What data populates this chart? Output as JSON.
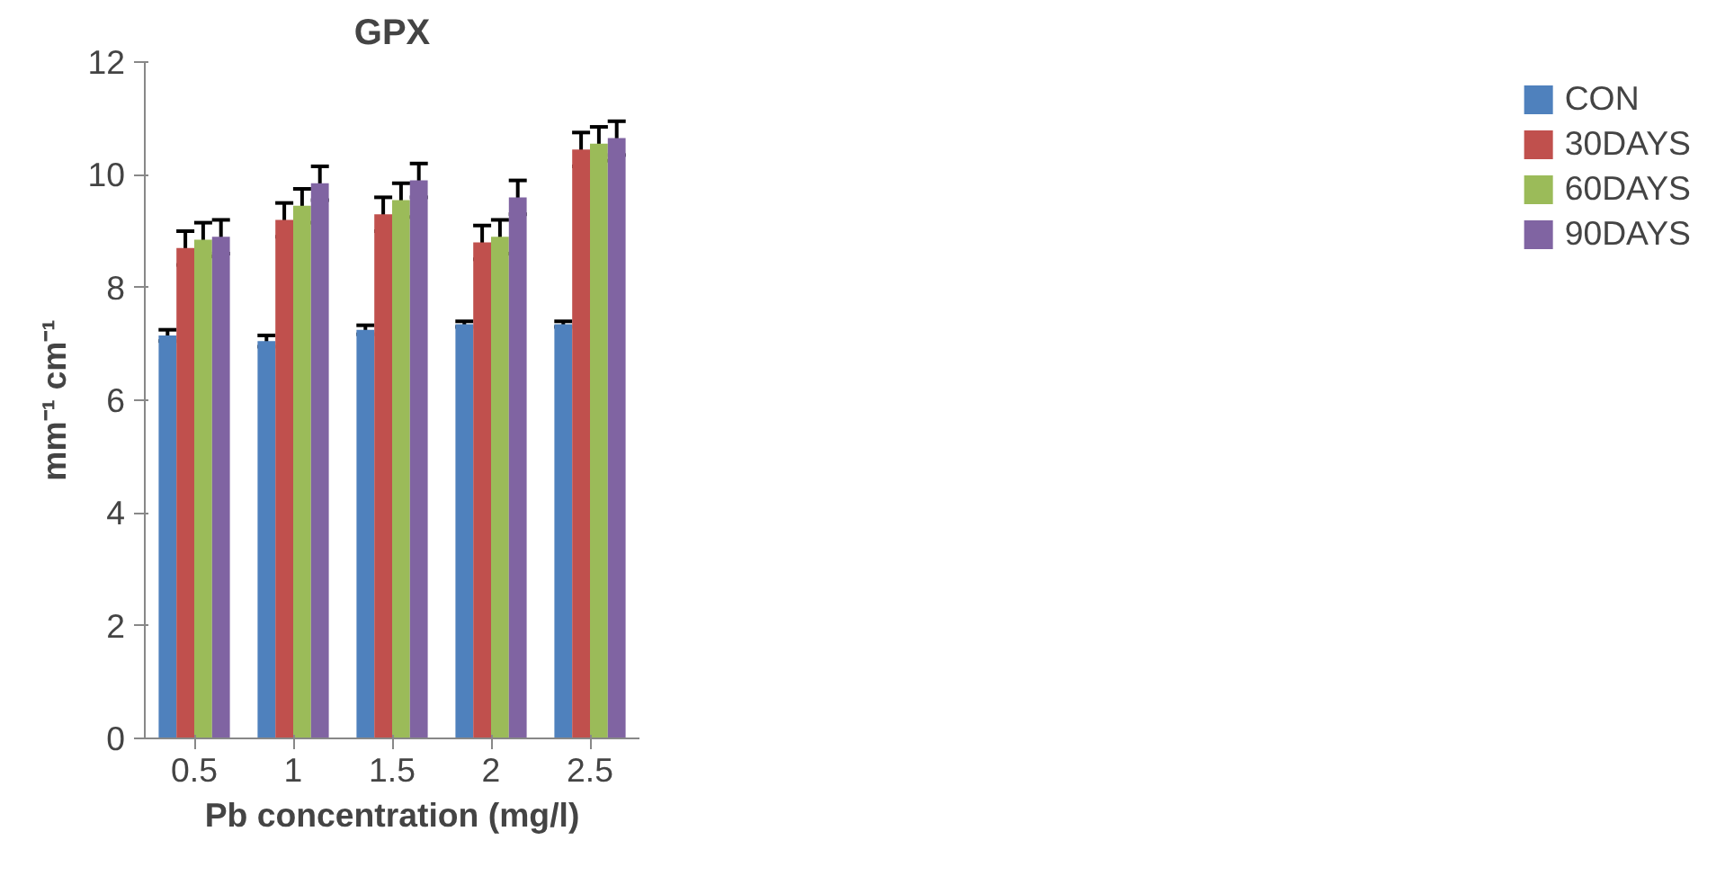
{
  "chart_data": {
    "type": "bar",
    "title": "GPX",
    "xlabel": "Pb concentration (mg/l)",
    "ylabel": "mm⁻¹ cm⁻¹",
    "categories": [
      "0.5",
      "1",
      "1.5",
      "2",
      "2.5"
    ],
    "series": [
      {
        "name": "CON",
        "color": "#4f81bd",
        "values": [
          7.15,
          7.05,
          7.25,
          7.35,
          7.35
        ],
        "errors": [
          0.1,
          0.1,
          0.08,
          0.05,
          0.05
        ]
      },
      {
        "name": "30DAYS",
        "color": "#c0504d",
        "values": [
          8.7,
          9.2,
          9.3,
          8.8,
          10.45
        ],
        "errors": [
          0.3,
          0.3,
          0.3,
          0.3,
          0.3
        ]
      },
      {
        "name": "60DAYS",
        "color": "#9bbb59",
        "values": [
          8.85,
          9.45,
          9.55,
          8.9,
          10.55
        ],
        "errors": [
          0.3,
          0.3,
          0.3,
          0.3,
          0.3
        ]
      },
      {
        "name": "90DAYS",
        "color": "#8064a2",
        "values": [
          8.9,
          9.85,
          9.9,
          9.6,
          10.65
        ],
        "errors": [
          0.3,
          0.3,
          0.3,
          0.3,
          0.3
        ]
      }
    ],
    "ylim": [
      0,
      12
    ],
    "yticks": [
      0,
      2,
      4,
      6,
      8,
      10,
      12
    ],
    "grid": false,
    "legend": "right"
  }
}
